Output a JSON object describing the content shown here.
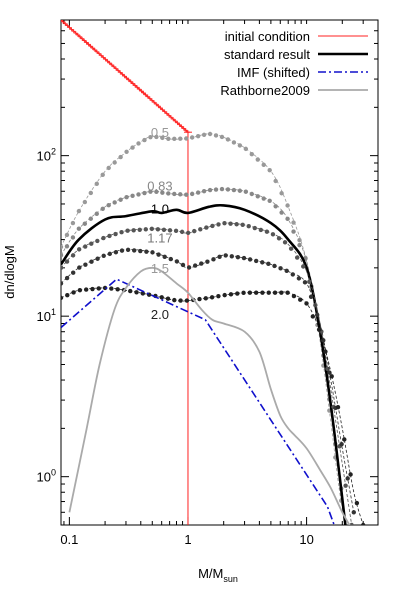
{
  "chart_data": {
    "type": "line",
    "xlabel": "M/M",
    "xlabel_sub": "sun",
    "ylabel": "dn/dlogM",
    "x_scale": "log",
    "y_scale": "log",
    "xlim": [
      0.085,
      40
    ],
    "ylim": [
      0.5,
      700
    ],
    "x_ticks": [
      {
        "value": 0.1,
        "label": "0.1"
      },
      {
        "value": 1,
        "label": "1"
      },
      {
        "value": 10,
        "label": "10"
      }
    ],
    "y_ticks": [
      {
        "value": 1,
        "base": "10",
        "exp": "0"
      },
      {
        "value": 10,
        "base": "10",
        "exp": "1"
      },
      {
        "value": 100,
        "base": "10",
        "exp": "2"
      }
    ],
    "legend_position": "top-right",
    "legend": [
      {
        "label": "initial condition",
        "series": "initial"
      },
      {
        "label": "standard result",
        "series": "standard"
      },
      {
        "label": "IMF (shifted)",
        "series": "imf"
      },
      {
        "label": "Rathborne2009",
        "series": "rathborne"
      }
    ],
    "series": [
      {
        "id": "initial",
        "color": "#ff2020",
        "style": "line-plus",
        "points": [
          [
            0.085,
            700
          ],
          [
            1.0,
            140
          ]
        ],
        "vline": {
          "x": 1.0,
          "y_from": 0.5,
          "y_to": 140
        }
      },
      {
        "id": "s05",
        "color": "#999999",
        "style": "dotted",
        "points": [
          [
            0.085,
            27
          ],
          [
            0.12,
            45
          ],
          [
            0.2,
            80
          ],
          [
            0.3,
            105
          ],
          [
            0.4,
            122
          ],
          [
            0.5,
            132
          ],
          [
            0.7,
            127
          ],
          [
            1.0,
            128
          ],
          [
            1.5,
            137
          ],
          [
            2,
            130
          ],
          [
            3,
            112
          ],
          [
            5,
            80
          ],
          [
            7,
            48
          ],
          [
            10,
            22
          ],
          [
            13,
            7
          ],
          [
            16,
            2.2
          ],
          [
            19,
            0.8
          ],
          [
            22,
            0.45
          ]
        ]
      },
      {
        "id": "s083",
        "color": "#888888",
        "style": "dotted",
        "points": [
          [
            0.085,
            24
          ],
          [
            0.12,
            35
          ],
          [
            0.2,
            48
          ],
          [
            0.3,
            55
          ],
          [
            0.5,
            60
          ],
          [
            0.7,
            58
          ],
          [
            1.0,
            57
          ],
          [
            1.5,
            61
          ],
          [
            2,
            62
          ],
          [
            3,
            60
          ],
          [
            5,
            52
          ],
          [
            7,
            40
          ],
          [
            10,
            22
          ],
          [
            13,
            8
          ],
          [
            16,
            2.6
          ],
          [
            19,
            1.0
          ],
          [
            22,
            0.45
          ]
        ]
      },
      {
        "id": "standard",
        "color": "#000000",
        "style": "thick",
        "points": [
          [
            0.085,
            21
          ],
          [
            0.12,
            30
          ],
          [
            0.2,
            40
          ],
          [
            0.3,
            42
          ],
          [
            0.5,
            45
          ],
          [
            0.6,
            44
          ],
          [
            0.8,
            46
          ],
          [
            1.0,
            44
          ],
          [
            1.5,
            48
          ],
          [
            2,
            49
          ],
          [
            3,
            46
          ],
          [
            5,
            38
          ],
          [
            7,
            30
          ],
          [
            10,
            20
          ],
          [
            13,
            8
          ],
          [
            16,
            2.8
          ],
          [
            19,
            1.0
          ],
          [
            22,
            0.4
          ]
        ]
      },
      {
        "id": "s117",
        "color": "#555555",
        "style": "dotted",
        "points": [
          [
            0.085,
            20
          ],
          [
            0.12,
            26
          ],
          [
            0.2,
            31
          ],
          [
            0.3,
            34
          ],
          [
            0.5,
            35
          ],
          [
            0.8,
            34
          ],
          [
            1.0,
            33
          ],
          [
            1.5,
            36
          ],
          [
            2,
            38
          ],
          [
            3,
            37
          ],
          [
            5,
            33
          ],
          [
            7,
            28
          ],
          [
            10,
            19
          ],
          [
            13,
            9
          ],
          [
            16,
            3.5
          ],
          [
            20,
            1.2
          ],
          [
            24,
            0.5
          ]
        ]
      },
      {
        "id": "s15",
        "color": "#333333",
        "style": "dotted",
        "points": [
          [
            0.085,
            16
          ],
          [
            0.12,
            20
          ],
          [
            0.2,
            24
          ],
          [
            0.3,
            26
          ],
          [
            0.5,
            25
          ],
          [
            0.8,
            22
          ],
          [
            1.0,
            20
          ],
          [
            1.5,
            22
          ],
          [
            2,
            24
          ],
          [
            3,
            23
          ],
          [
            5,
            21
          ],
          [
            7,
            19
          ],
          [
            10,
            16
          ],
          [
            13,
            9
          ],
          [
            16,
            4
          ],
          [
            20,
            1.5
          ],
          [
            25,
            0.6
          ]
        ]
      },
      {
        "id": "s20",
        "color": "#222222",
        "style": "dotted",
        "points": [
          [
            0.085,
            13
          ],
          [
            0.12,
            14.5
          ],
          [
            0.2,
            15
          ],
          [
            0.3,
            14.5
          ],
          [
            0.5,
            13.5
          ],
          [
            0.8,
            12.5
          ],
          [
            1.0,
            12.5
          ],
          [
            1.5,
            13
          ],
          [
            2,
            13.5
          ],
          [
            3,
            14
          ],
          [
            5,
            14
          ],
          [
            7,
            14
          ],
          [
            10,
            12
          ],
          [
            13,
            8
          ],
          [
            16,
            4.5
          ],
          [
            20,
            2
          ],
          [
            25,
            0.8
          ],
          [
            30,
            0.5
          ]
        ]
      },
      {
        "id": "imf",
        "color": "#1010cc",
        "style": "dashdot",
        "points": [
          [
            0.085,
            8.5
          ],
          [
            0.25,
            17
          ],
          [
            1.4,
            9.5
          ],
          [
            15,
            0.65
          ],
          [
            18,
            0.45
          ]
        ]
      },
      {
        "id": "rathborne",
        "color": "#aaaaaa",
        "style": "thin",
        "points": [
          [
            0.1,
            0.6
          ],
          [
            0.14,
            2
          ],
          [
            0.18,
            5
          ],
          [
            0.24,
            11
          ],
          [
            0.3,
            15
          ],
          [
            0.4,
            19
          ],
          [
            0.5,
            20
          ],
          [
            0.6,
            19
          ],
          [
            0.8,
            16
          ],
          [
            1.0,
            14
          ],
          [
            1.3,
            11
          ],
          [
            1.6,
            9.5
          ],
          [
            2,
            9
          ],
          [
            3,
            8
          ],
          [
            4,
            6
          ],
          [
            5,
            3.5
          ],
          [
            6,
            2.4
          ],
          [
            7,
            2.0
          ],
          [
            8,
            1.8
          ],
          [
            10,
            1.5
          ],
          [
            13,
            1.1
          ],
          [
            16,
            0.85
          ],
          [
            20,
            0.6
          ],
          [
            25,
            0.45
          ]
        ]
      }
    ],
    "annotations": [
      {
        "text": "0.5",
        "x": 0.58,
        "y": 140,
        "color": "#999999"
      },
      {
        "text": "0.83",
        "x": 0.58,
        "y": 65,
        "color": "#888888"
      },
      {
        "text": "1.0",
        "x": 0.58,
        "y": 47,
        "color": "#000000"
      },
      {
        "text": "1.17",
        "x": 0.58,
        "y": 31,
        "color": "#777777"
      },
      {
        "text": "1.5",
        "x": 0.58,
        "y": 20,
        "color": "#999999"
      },
      {
        "text": "2.0",
        "x": 0.58,
        "y": 10.3,
        "color": "#222222"
      }
    ]
  }
}
